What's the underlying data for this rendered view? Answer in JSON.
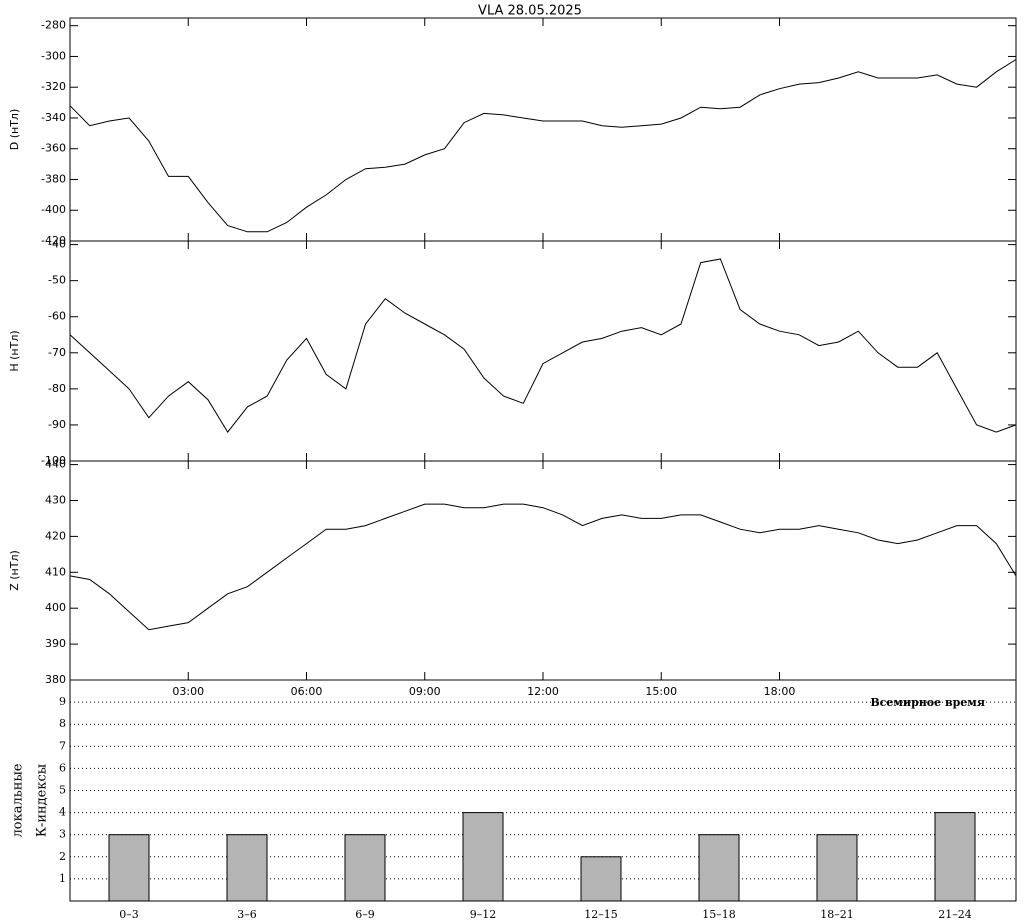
{
  "chart_data": [
    {
      "type": "line",
      "title": "VLA   28.05.2025",
      "ylabel": "D (нТл)",
      "color": "#000000",
      "x": [
        0,
        0.5,
        1,
        1.5,
        2,
        2.5,
        3,
        3.5,
        4,
        4.5,
        5,
        5.5,
        6,
        6.5,
        7,
        7.5,
        8,
        8.5,
        9,
        9.5,
        10,
        10.5,
        11,
        11.5,
        12,
        12.5,
        13,
        13.5,
        14,
        14.5,
        15,
        15.5,
        16,
        16.5,
        17,
        17.5,
        18,
        18.5,
        19,
        19.5,
        20,
        20.5,
        21,
        21.5,
        22,
        22.5,
        23,
        23.5,
        24
      ],
      "values": [
        -332,
        -345,
        -342,
        -340,
        -355,
        -378,
        -378,
        -395,
        -410,
        -414,
        -414,
        -408,
        -398,
        -390,
        -380,
        -373,
        -372,
        -370,
        -364,
        -360,
        -343,
        -337,
        -338,
        -340,
        -342,
        -342,
        -342,
        -345,
        -346,
        -345,
        -344,
        -340,
        -333,
        -334,
        -333,
        -325,
        -321,
        -318,
        -317,
        -314,
        -310,
        -314,
        -314,
        -314,
        -312,
        -318,
        -320,
        -310,
        -302
      ],
      "xlim": [
        0,
        24
      ],
      "ylim": [
        -420,
        -275
      ],
      "yticks": [
        -280,
        -300,
        -320,
        -340,
        -360,
        -380,
        -400,
        -420
      ]
    },
    {
      "type": "line",
      "ylabel": "H (нТл)",
      "color": "#000000",
      "x": [
        0,
        0.5,
        1,
        1.5,
        2,
        2.5,
        3,
        3.5,
        4,
        4.5,
        5,
        5.5,
        6,
        6.5,
        7,
        7.5,
        8,
        8.5,
        9,
        9.5,
        10,
        10.5,
        11,
        11.5,
        12,
        12.5,
        13,
        13.5,
        14,
        14.5,
        15,
        15.5,
        16,
        16.5,
        17,
        17.5,
        18,
        18.5,
        19,
        19.5,
        20,
        20.5,
        21,
        21.5,
        22,
        22.5,
        23,
        23.5,
        24
      ],
      "values": [
        -65,
        -70,
        -75,
        -80,
        -88,
        -82,
        -78,
        -83,
        -92,
        -85,
        -82,
        -72,
        -66,
        -76,
        -80,
        -62,
        -55,
        -59,
        -62,
        -65,
        -69,
        -77,
        -82,
        -84,
        -73,
        -70,
        -67,
        -66,
        -64,
        -63,
        -65,
        -62,
        -45,
        -44,
        -58,
        -62,
        -64,
        -65,
        -68,
        -67,
        -64,
        -70,
        -74,
        -74,
        -70,
        -80,
        -90,
        -92,
        -90
      ],
      "xlim": [
        0,
        24
      ],
      "ylim": [
        -100,
        -39
      ],
      "yticks": [
        -40,
        -50,
        -60,
        -70,
        -80,
        -90,
        -100
      ]
    },
    {
      "type": "line",
      "ylabel": "Z (нТл)",
      "xlabel": "Всемирное время",
      "color": "#000000",
      "x": [
        0,
        0.5,
        1,
        1.5,
        2,
        2.5,
        3,
        3.5,
        4,
        4.5,
        5,
        5.5,
        6,
        6.5,
        7,
        7.5,
        8,
        8.5,
        9,
        9.5,
        10,
        10.5,
        11,
        11.5,
        12,
        12.5,
        13,
        13.5,
        14,
        14.5,
        15,
        15.5,
        16,
        16.5,
        17,
        17.5,
        18,
        18.5,
        19,
        19.5,
        20,
        20.5,
        21,
        21.5,
        22,
        22.5,
        23,
        23.5,
        24
      ],
      "values": [
        409,
        408,
        404,
        399,
        394,
        395,
        396,
        400,
        404,
        406,
        410,
        414,
        418,
        422,
        422,
        423,
        425,
        427,
        429,
        429,
        428,
        428,
        429,
        429,
        428,
        426,
        423,
        425,
        426,
        425,
        425,
        426,
        426,
        424,
        422,
        421,
        422,
        422,
        423,
        422,
        421,
        419,
        418,
        419,
        421,
        423,
        423,
        418,
        409
      ],
      "xlim": [
        0,
        24
      ],
      "ylim": [
        380,
        441
      ],
      "yticks": [
        440,
        430,
        420,
        410,
        400,
        390,
        380
      ],
      "xticks": [
        {
          "value": 3,
          "label": "03:00"
        },
        {
          "value": 6,
          "label": "06:00"
        },
        {
          "value": 9,
          "label": "09:00"
        },
        {
          "value": 12,
          "label": "12:00"
        },
        {
          "value": 15,
          "label": "15:00"
        },
        {
          "value": 18,
          "label": "18:00"
        }
      ]
    },
    {
      "type": "bar",
      "ylabel": [
        "локальные",
        "К-индексы"
      ],
      "color": "#b4b4b4",
      "categories": [
        "0–3",
        "3–6",
        "6–9",
        "9–12",
        "12–15",
        "15–18",
        "18–21",
        "21–24"
      ],
      "values": [
        3,
        3,
        3,
        4,
        2,
        3,
        3,
        4
      ],
      "ylim": [
        0,
        10
      ],
      "yticks": [
        1,
        2,
        3,
        4,
        5,
        6,
        7,
        8,
        9
      ],
      "grid": true
    }
  ]
}
